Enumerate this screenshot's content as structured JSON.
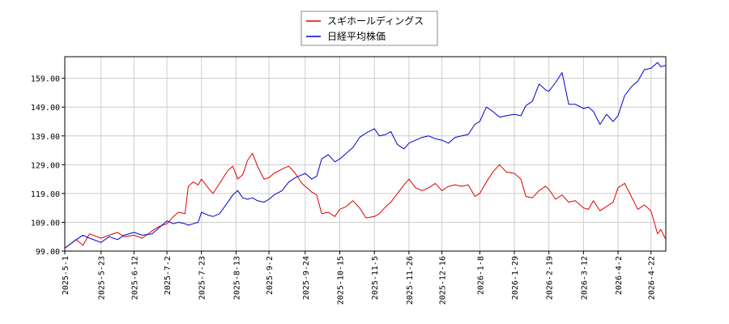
{
  "chart_data": {
    "type": "line",
    "legend": {
      "placement": "top-center"
    },
    "grid": true,
    "ylim": [
      99.0,
      166.5
    ],
    "y_ticks": [
      "99.00",
      "109.00",
      "119.00",
      "129.00",
      "139.00",
      "149.00",
      "159.00"
    ],
    "x_range": [
      "2025-05-01",
      "2026-05-01"
    ],
    "x_ticks": [
      "2025-5-1",
      "2025-5-23",
      "2025-6-12",
      "2025-7-2",
      "2025-7-23",
      "2025-8-13",
      "2025-9-2",
      "2025-9-24",
      "2025-10-15",
      "2025-11-5",
      "2025-11-26",
      "2025-12-16",
      "2026-1-8",
      "2026-1-29",
      "2026-2-19",
      "2026-3-12",
      "2026-4-2",
      "2026-4-22"
    ],
    "series": [
      {
        "name": "スギホールディングス",
        "color": "#dd0000",
        "points": [
          [
            "2025-05-01",
            100.0
          ],
          [
            "2025-05-08",
            103.0
          ],
          [
            "2025-05-12",
            101.0
          ],
          [
            "2025-05-16",
            105.0
          ],
          [
            "2025-05-23",
            103.5
          ],
          [
            "2025-05-28",
            104.5
          ],
          [
            "2025-06-02",
            105.5
          ],
          [
            "2025-06-06",
            104.0
          ],
          [
            "2025-06-12",
            104.5
          ],
          [
            "2025-06-17",
            103.5
          ],
          [
            "2025-06-23",
            106.0
          ],
          [
            "2025-06-27",
            107.5
          ],
          [
            "2025-07-02",
            108.5
          ],
          [
            "2025-07-06",
            111.0
          ],
          [
            "2025-07-09",
            112.5
          ],
          [
            "2025-07-13",
            112.0
          ],
          [
            "2025-07-15",
            121.5
          ],
          [
            "2025-07-18",
            123.0
          ],
          [
            "2025-07-21",
            122.0
          ],
          [
            "2025-07-23",
            124.0
          ],
          [
            "2025-07-27",
            121.0
          ],
          [
            "2025-07-30",
            119.0
          ],
          [
            "2025-08-03",
            122.5
          ],
          [
            "2025-08-08",
            127.0
          ],
          [
            "2025-08-11",
            128.5
          ],
          [
            "2025-08-14",
            124.0
          ],
          [
            "2025-08-17",
            125.5
          ],
          [
            "2025-08-20",
            130.5
          ],
          [
            "2025-08-23",
            133.0
          ],
          [
            "2025-08-26",
            128.5
          ],
          [
            "2025-08-30",
            124.0
          ],
          [
            "2025-09-02",
            124.5
          ],
          [
            "2025-09-05",
            126.0
          ],
          [
            "2025-09-10",
            127.5
          ],
          [
            "2025-09-14",
            128.5
          ],
          [
            "2025-09-18",
            126.0
          ],
          [
            "2025-09-22",
            122.5
          ],
          [
            "2025-09-24",
            121.5
          ],
          [
            "2025-09-28",
            119.5
          ],
          [
            "2025-10-01",
            118.5
          ],
          [
            "2025-10-04",
            112.0
          ],
          [
            "2025-10-08",
            112.5
          ],
          [
            "2025-10-12",
            111.0
          ],
          [
            "2025-10-15",
            113.5
          ],
          [
            "2025-10-19",
            114.5
          ],
          [
            "2025-10-23",
            116.5
          ],
          [
            "2025-10-27",
            114.0
          ],
          [
            "2025-10-31",
            110.5
          ],
          [
            "2025-11-05",
            111.0
          ],
          [
            "2025-11-08",
            112.0
          ],
          [
            "2025-11-12",
            114.5
          ],
          [
            "2025-11-15",
            116.0
          ],
          [
            "2025-11-19",
            119.0
          ],
          [
            "2025-11-23",
            122.0
          ],
          [
            "2025-11-26",
            124.0
          ],
          [
            "2025-11-30",
            121.0
          ],
          [
            "2025-12-04",
            120.0
          ],
          [
            "2025-12-08",
            121.0
          ],
          [
            "2025-12-12",
            122.5
          ],
          [
            "2025-12-16",
            120.0
          ],
          [
            "2025-12-20",
            121.5
          ],
          [
            "2025-12-24",
            122.0
          ],
          [
            "2025-12-28",
            121.5
          ],
          [
            "2026-01-01",
            122.0
          ],
          [
            "2026-01-05",
            118.0
          ],
          [
            "2026-01-08",
            119.0
          ],
          [
            "2026-01-12",
            123.0
          ],
          [
            "2026-01-16",
            126.5
          ],
          [
            "2026-01-20",
            129.0
          ],
          [
            "2026-01-24",
            126.5
          ],
          [
            "2026-01-29",
            126.0
          ],
          [
            "2026-02-02",
            124.0
          ],
          [
            "2026-02-05",
            118.0
          ],
          [
            "2026-02-09",
            117.5
          ],
          [
            "2026-02-13",
            120.0
          ],
          [
            "2026-02-17",
            121.5
          ],
          [
            "2026-02-19",
            120.5
          ],
          [
            "2026-02-23",
            117.0
          ],
          [
            "2026-02-27",
            118.5
          ],
          [
            "2026-03-03",
            116.0
          ],
          [
            "2026-03-07",
            116.5
          ],
          [
            "2026-03-12",
            114.0
          ],
          [
            "2026-03-15",
            113.5
          ],
          [
            "2026-03-18",
            116.5
          ],
          [
            "2026-03-22",
            113.0
          ],
          [
            "2026-03-26",
            114.5
          ],
          [
            "2026-03-30",
            116.0
          ],
          [
            "2026-04-02",
            121.0
          ],
          [
            "2026-04-06",
            122.5
          ],
          [
            "2026-04-10",
            118.0
          ],
          [
            "2026-04-14",
            113.5
          ],
          [
            "2026-04-18",
            115.0
          ],
          [
            "2026-04-22",
            113.0
          ],
          [
            "2026-04-26",
            105.0
          ],
          [
            "2026-04-28",
            106.5
          ],
          [
            "2026-05-01",
            103.0
          ]
        ]
      },
      {
        "name": "日経平均株価",
        "color": "#0000cc",
        "points": [
          [
            "2025-05-01",
            100.0
          ],
          [
            "2025-05-08",
            103.0
          ],
          [
            "2025-05-12",
            104.5
          ],
          [
            "2025-05-16",
            103.5
          ],
          [
            "2025-05-23",
            102.0
          ],
          [
            "2025-05-28",
            104.0
          ],
          [
            "2025-06-02",
            103.0
          ],
          [
            "2025-06-06",
            104.5
          ],
          [
            "2025-06-12",
            105.5
          ],
          [
            "2025-06-17",
            104.5
          ],
          [
            "2025-06-23",
            105.0
          ],
          [
            "2025-06-27",
            107.0
          ],
          [
            "2025-07-02",
            109.5
          ],
          [
            "2025-07-06",
            108.5
          ],
          [
            "2025-07-09",
            109.0
          ],
          [
            "2025-07-13",
            108.5
          ],
          [
            "2025-07-15",
            108.0
          ],
          [
            "2025-07-18",
            108.5
          ],
          [
            "2025-07-21",
            109.0
          ],
          [
            "2025-07-23",
            112.5
          ],
          [
            "2025-07-27",
            111.5
          ],
          [
            "2025-07-30",
            111.0
          ],
          [
            "2025-08-03",
            112.0
          ],
          [
            "2025-08-08",
            116.0
          ],
          [
            "2025-08-11",
            118.5
          ],
          [
            "2025-08-14",
            120.0
          ],
          [
            "2025-08-17",
            117.5
          ],
          [
            "2025-08-20",
            117.0
          ],
          [
            "2025-08-23",
            117.5
          ],
          [
            "2025-08-26",
            116.5
          ],
          [
            "2025-08-30",
            116.0
          ],
          [
            "2025-09-02",
            117.0
          ],
          [
            "2025-09-05",
            118.5
          ],
          [
            "2025-09-10",
            120.0
          ],
          [
            "2025-09-14",
            123.0
          ],
          [
            "2025-09-18",
            124.5
          ],
          [
            "2025-09-22",
            125.5
          ],
          [
            "2025-09-24",
            126.0
          ],
          [
            "2025-09-28",
            124.0
          ],
          [
            "2025-10-01",
            125.0
          ],
          [
            "2025-10-04",
            131.0
          ],
          [
            "2025-10-08",
            132.5
          ],
          [
            "2025-10-12",
            130.0
          ],
          [
            "2025-10-15",
            131.0
          ],
          [
            "2025-10-19",
            133.0
          ],
          [
            "2025-10-23",
            135.0
          ],
          [
            "2025-10-27",
            138.5
          ],
          [
            "2025-10-31",
            140.0
          ],
          [
            "2025-11-05",
            141.5
          ],
          [
            "2025-11-08",
            139.0
          ],
          [
            "2025-11-12",
            139.5
          ],
          [
            "2025-11-15",
            140.5
          ],
          [
            "2025-11-19",
            136.0
          ],
          [
            "2025-11-23",
            134.5
          ],
          [
            "2025-11-26",
            136.5
          ],
          [
            "2025-11-30",
            137.5
          ],
          [
            "2025-12-04",
            138.5
          ],
          [
            "2025-12-08",
            139.0
          ],
          [
            "2025-12-12",
            138.0
          ],
          [
            "2025-12-16",
            137.5
          ],
          [
            "2025-12-20",
            136.5
          ],
          [
            "2025-12-24",
            138.5
          ],
          [
            "2025-12-28",
            139.0
          ],
          [
            "2026-01-01",
            139.5
          ],
          [
            "2026-01-05",
            143.0
          ],
          [
            "2026-01-08",
            144.0
          ],
          [
            "2026-01-12",
            149.0
          ],
          [
            "2026-01-16",
            147.5
          ],
          [
            "2026-01-20",
            145.5
          ],
          [
            "2026-01-24",
            146.0
          ],
          [
            "2026-01-29",
            146.5
          ],
          [
            "2026-02-02",
            146.0
          ],
          [
            "2026-02-05",
            149.5
          ],
          [
            "2026-02-09",
            151.0
          ],
          [
            "2026-02-13",
            157.0
          ],
          [
            "2026-02-17",
            155.0
          ],
          [
            "2026-02-19",
            154.5
          ],
          [
            "2026-02-23",
            157.5
          ],
          [
            "2026-02-27",
            161.0
          ],
          [
            "2026-03-03",
            150.0
          ],
          [
            "2026-03-07",
            150.0
          ],
          [
            "2026-03-12",
            148.5
          ],
          [
            "2026-03-15",
            149.0
          ],
          [
            "2026-03-18",
            147.5
          ],
          [
            "2026-03-22",
            143.0
          ],
          [
            "2026-03-26",
            146.5
          ],
          [
            "2026-03-30",
            144.0
          ],
          [
            "2026-04-02",
            146.0
          ],
          [
            "2026-04-06",
            153.0
          ],
          [
            "2026-04-10",
            156.0
          ],
          [
            "2026-04-14",
            158.0
          ],
          [
            "2026-04-18",
            162.0
          ],
          [
            "2026-04-22",
            162.5
          ],
          [
            "2026-04-26",
            164.5
          ],
          [
            "2026-04-28",
            163.0
          ],
          [
            "2026-05-01",
            163.5
          ]
        ]
      }
    ]
  }
}
